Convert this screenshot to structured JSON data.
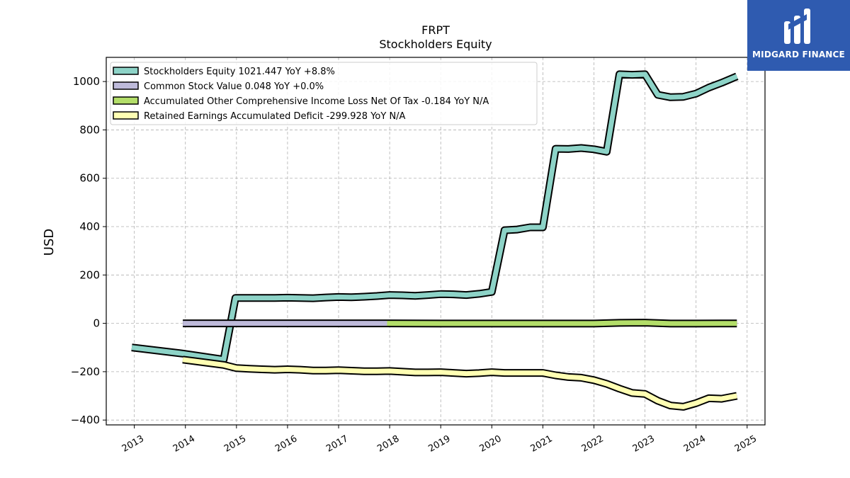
{
  "chart_data": {
    "type": "line",
    "title": "FRPT",
    "subtitle": "Stockholders  Equity",
    "ylabel": "USD",
    "ylim": [
      -420,
      1100
    ],
    "yticks": [
      -400,
      -200,
      0,
      200,
      400,
      600,
      800,
      1000
    ],
    "xlim": [
      2012.45,
      2025.35
    ],
    "xticks": [
      2013,
      2014,
      2015,
      2016,
      2017,
      2018,
      2019,
      2020,
      2021,
      2022,
      2023,
      2024,
      2025
    ],
    "grid": true,
    "legend_position": "upper-left",
    "series": [
      {
        "name": "Stockholders Equity",
        "legend": "Stockholders Equity  1021.447 YoY +8.8%",
        "color": "#8dd3c7",
        "x": [
          2012.95,
          2013.95,
          2014.75,
          2014.98,
          2015.25,
          2015.5,
          2015.75,
          2016.0,
          2016.25,
          2016.5,
          2016.75,
          2017.0,
          2017.25,
          2017.5,
          2017.75,
          2018.0,
          2018.25,
          2018.5,
          2018.75,
          2019.0,
          2019.25,
          2019.5,
          2019.75,
          2020.0,
          2020.25,
          2020.5,
          2020.75,
          2021.0,
          2021.25,
          2021.5,
          2021.75,
          2022.0,
          2022.25,
          2022.5,
          2022.75,
          2023.0,
          2023.25,
          2023.5,
          2023.75,
          2024.0,
          2024.25,
          2024.5,
          2024.8
        ],
        "values": [
          -100,
          -125,
          -150,
          105,
          105,
          105,
          105,
          106,
          105,
          104,
          107,
          109,
          108,
          110,
          113,
          117,
          116,
          114,
          117,
          121,
          120,
          117,
          122,
          130,
          385,
          388,
          397,
          397,
          722,
          721,
          725,
          720,
          710,
          1030,
          1028,
          1030,
          945,
          935,
          937,
          950,
          975,
          995,
          1021.447
        ]
      },
      {
        "name": "Common Stock Value",
        "legend": "Common Stock Value  0.048 YoY +0.0%",
        "color": "#bebada",
        "x": [
          2013.95,
          2017.95
        ],
        "values": [
          0.048,
          0.048
        ]
      },
      {
        "name": "Accumulated Other Comprehensive Income Loss Net Of Tax",
        "legend": "Accumulated Other Comprehensive Income Loss Net Of Tax  -0.184 YoY N/A",
        "color": "#b3de69",
        "x": [
          2017.95,
          2019.0,
          2020.0,
          2021.0,
          2022.0,
          2022.5,
          2023.0,
          2023.5,
          2024.0,
          2024.8
        ],
        "values": [
          0,
          -1,
          -1,
          -1,
          -1,
          2,
          3,
          -1,
          -1,
          -0.184
        ]
      },
      {
        "name": "Retained Earnings Accumulated Deficit",
        "legend": "Retained Earnings Accumulated Deficit  -299.928 YoY N/A",
        "color": "#ffffb3",
        "x": [
          2013.95,
          2014.75,
          2015.0,
          2015.25,
          2015.5,
          2015.75,
          2016.0,
          2016.25,
          2016.5,
          2016.75,
          2017.0,
          2017.25,
          2017.5,
          2017.75,
          2018.0,
          2018.25,
          2018.5,
          2018.75,
          2019.0,
          2019.25,
          2019.5,
          2019.75,
          2020.0,
          2020.25,
          2020.5,
          2020.75,
          2021.0,
          2021.25,
          2021.5,
          2021.75,
          2022.0,
          2022.25,
          2022.5,
          2022.75,
          2023.0,
          2023.25,
          2023.5,
          2023.75,
          2024.0,
          2024.25,
          2024.5,
          2024.8
        ],
        "values": [
          -150,
          -172,
          -185,
          -188,
          -190,
          -192,
          -190,
          -192,
          -195,
          -195,
          -194,
          -196,
          -198,
          -198,
          -197,
          -200,
          -203,
          -203,
          -202,
          -205,
          -208,
          -206,
          -202,
          -205,
          -205,
          -205,
          -205,
          -215,
          -222,
          -225,
          -235,
          -250,
          -270,
          -288,
          -292,
          -320,
          -340,
          -345,
          -330,
          -310,
          -312,
          -299.928
        ]
      }
    ]
  },
  "logo": {
    "brand": "MIDGARD FINANCE",
    "color": "#2f5bb0"
  }
}
